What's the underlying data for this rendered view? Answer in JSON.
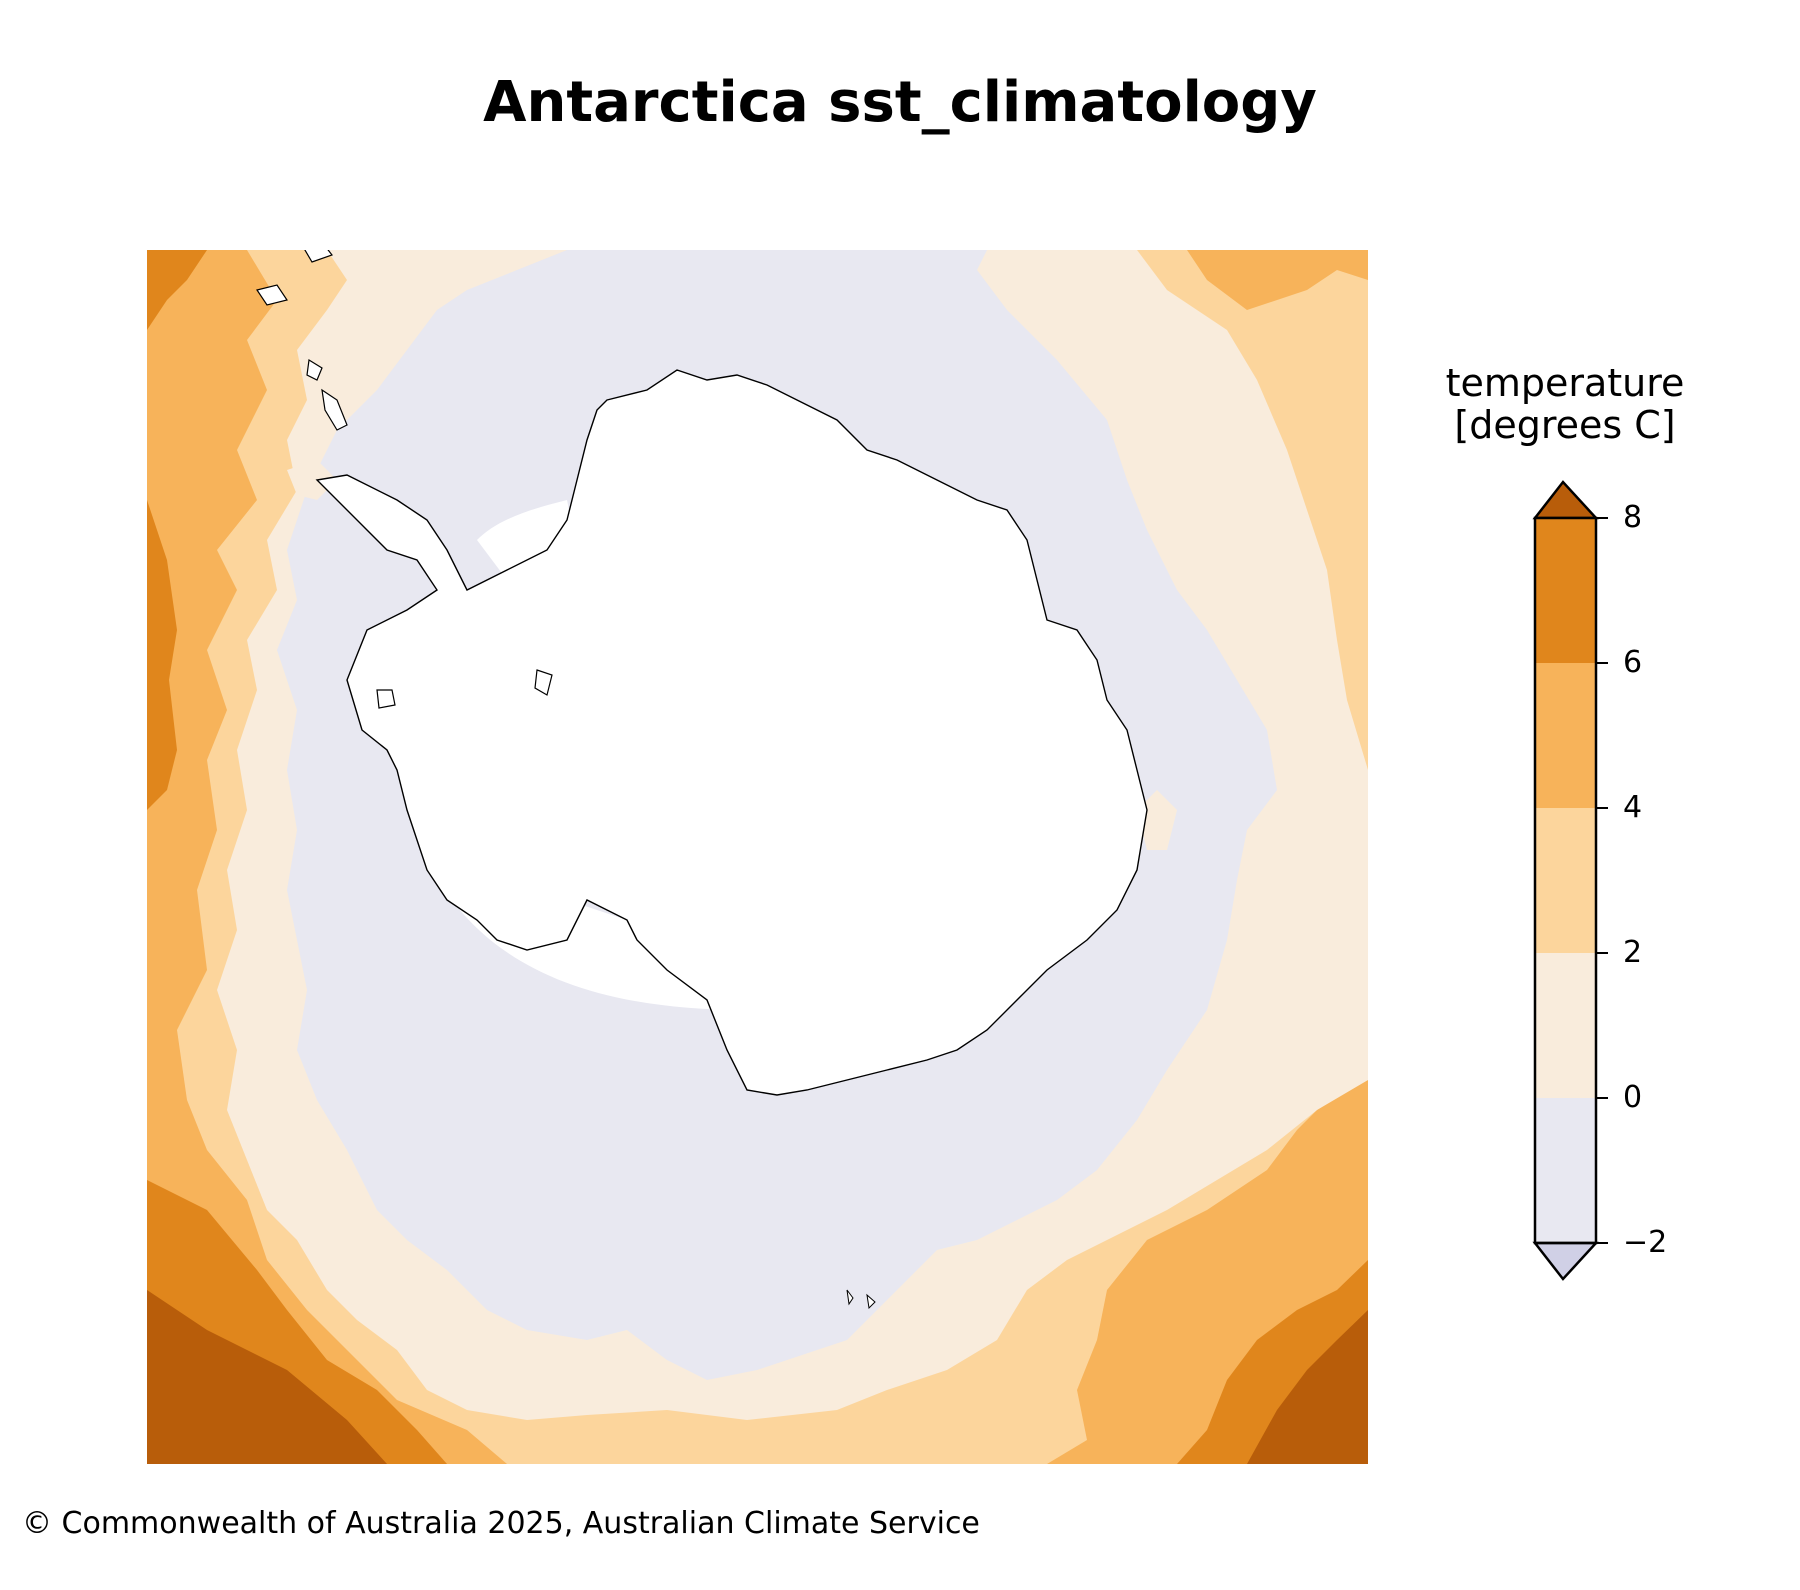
{
  "title": "Antarctica sst_climatology",
  "colorbar": {
    "title_line1": "temperature",
    "title_line2": "[degrees C]",
    "ticks": [
      "8",
      "6",
      "4",
      "2",
      "0",
      "−2"
    ],
    "bands": [
      {
        "range": "> 8",
        "color": "#b85d0a"
      },
      {
        "range": "6 to 8",
        "color": "#e0861c"
      },
      {
        "range": "4 to 6",
        "color": "#f7b35a"
      },
      {
        "range": "2 to 4",
        "color": "#fcd59c"
      },
      {
        "range": "0 to 2",
        "color": "#f9ecdc"
      },
      {
        "range": "-2 to 0",
        "color": "#e8e8f1"
      },
      {
        "range": "< -2",
        "color": "#d0d0e6"
      }
    ]
  },
  "land_color": "#ffffff",
  "coastline_color": "#000000",
  "copyright": "© Commonwealth of Australia 2025, Australian Climate Service"
}
